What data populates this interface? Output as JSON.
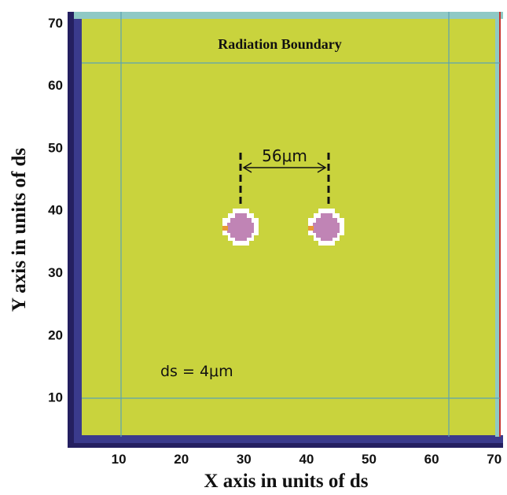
{
  "figure": {
    "boundary_label": "Radiation Boundary",
    "spacing_label": "56μm",
    "ds_label": "ds = 4μm",
    "x_axis_title": "X axis in units of ds",
    "y_axis_title": "Y axis in units of ds",
    "x_ticks": [
      "10",
      "20",
      "30",
      "40",
      "50",
      "60",
      "70"
    ],
    "y_ticks": [
      "10",
      "20",
      "30",
      "40",
      "50",
      "60",
      "70"
    ],
    "x_range": [
      1,
      70
    ],
    "y_range": [
      1,
      70
    ],
    "colors": {
      "domain_fill": "#C9D33D",
      "pml_dark": "#3A3A8C",
      "pml_edge": "#241F60",
      "boundary_line": "#5BA3B3",
      "top_strip": "#8FC9C5",
      "right_edge": "#C8342E",
      "disk_fill": "#C084B5",
      "disk_halo": "#FFFFFF",
      "marker": "#E89A35"
    }
  }
}
